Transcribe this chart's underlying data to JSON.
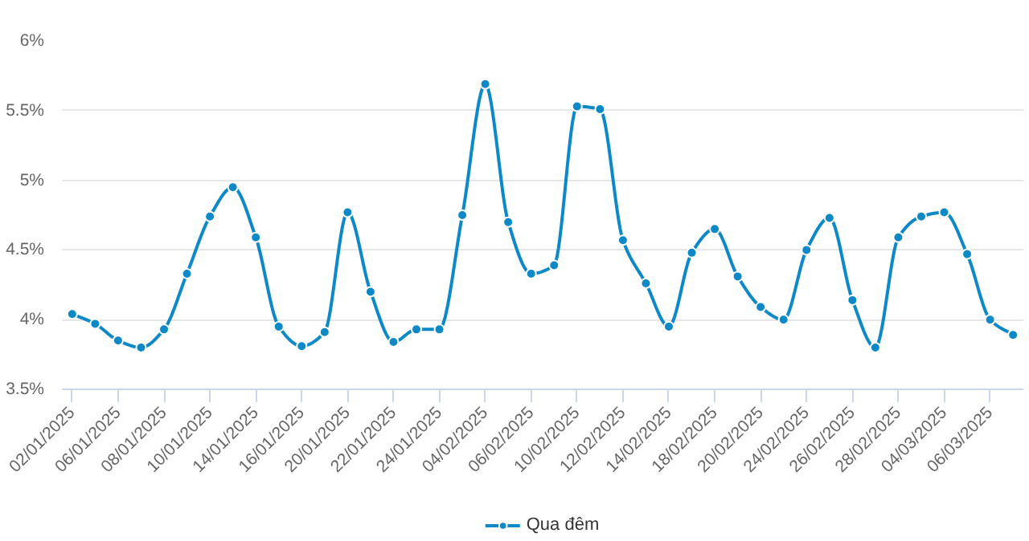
{
  "chart_data": {
    "type": "line",
    "categories": [
      "02/01/2025",
      null,
      "06/01/2025",
      null,
      "08/01/2025",
      null,
      "10/01/2025",
      null,
      "14/01/2025",
      null,
      "16/01/2025",
      null,
      "20/01/2025",
      null,
      "22/01/2025",
      null,
      "24/01/2025",
      null,
      "04/02/2025",
      null,
      "06/02/2025",
      null,
      "10/02/2025",
      null,
      "12/02/2025",
      null,
      "14/02/2025",
      null,
      "18/02/2025",
      null,
      "20/02/2025",
      null,
      "24/02/2025",
      null,
      "26/02/2025",
      null,
      "28/02/2025",
      null,
      "04/03/2025",
      null,
      "06/03/2025",
      null
    ],
    "series": [
      {
        "name": "Qua đêm",
        "color": "#0d89c7",
        "values": [
          4.04,
          3.97,
          3.85,
          3.8,
          3.93,
          4.33,
          4.74,
          4.95,
          4.59,
          3.95,
          3.81,
          3.91,
          4.77,
          4.2,
          3.84,
          3.93,
          3.93,
          4.75,
          5.69,
          4.7,
          4.33,
          4.39,
          5.53,
          5.51,
          4.57,
          4.26,
          3.95,
          4.48,
          4.65,
          4.31,
          4.09,
          4.0,
          4.5,
          4.73,
          4.14,
          3.8,
          4.59,
          4.74,
          4.77,
          4.47,
          4.0,
          3.89
        ]
      }
    ],
    "ylim": [
      3.5,
      6
    ],
    "yticks": [
      {
        "value": 3.5,
        "label": "3.5%"
      },
      {
        "value": 4,
        "label": "4%"
      },
      {
        "value": 4.5,
        "label": "4.5%"
      },
      {
        "value": 5,
        "label": "5%"
      },
      {
        "value": 5.5,
        "label": "5.5%"
      },
      {
        "value": 6,
        "label": "6%"
      }
    ],
    "grid": "y",
    "legend": "bottom",
    "marker": "circle",
    "line_style": "solid"
  }
}
